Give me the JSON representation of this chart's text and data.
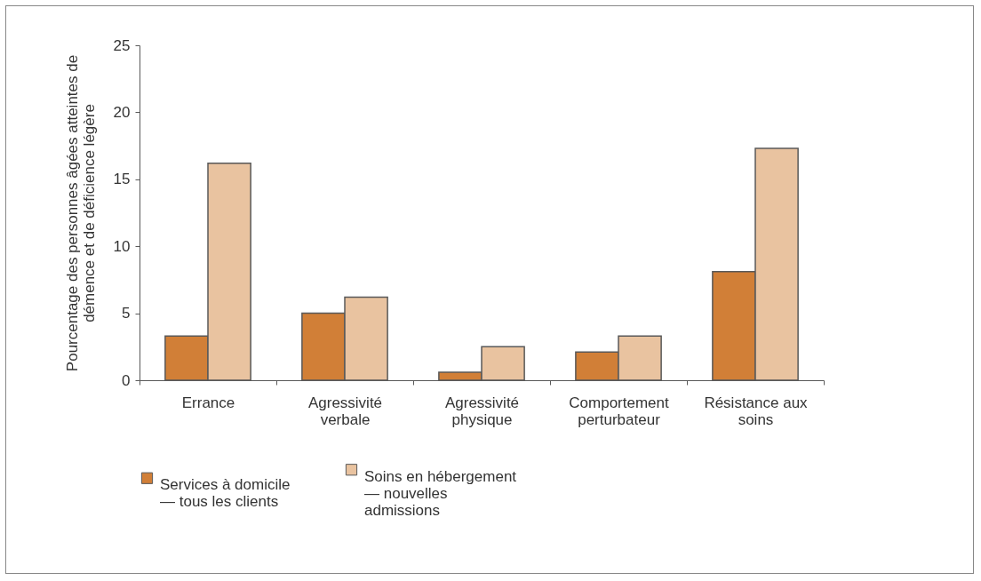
{
  "chart_data": {
    "type": "bar",
    "ylabel": "Pourcentage des personnes âgées atteintes de démence et de déficience légère",
    "categories": [
      "Errance",
      "Agressivité verbale",
      "Agressivité physique",
      "Comportement perturbateur",
      "Résistance aux soins"
    ],
    "series": [
      {
        "name": "Services à domicile — tous les clients",
        "color": "#d17f37",
        "values": [
          3.3,
          5.0,
          0.6,
          2.1,
          8.1
        ]
      },
      {
        "name": "Soins en hébergement — nouvelles admissions",
        "color": "#e9c3a0",
        "values": [
          16.2,
          6.2,
          2.5,
          3.3,
          17.3
        ]
      }
    ],
    "ylim": [
      0,
      25
    ],
    "yticks": [
      0,
      5,
      10,
      15,
      20,
      25
    ],
    "grid": false,
    "legend": "bottom"
  }
}
